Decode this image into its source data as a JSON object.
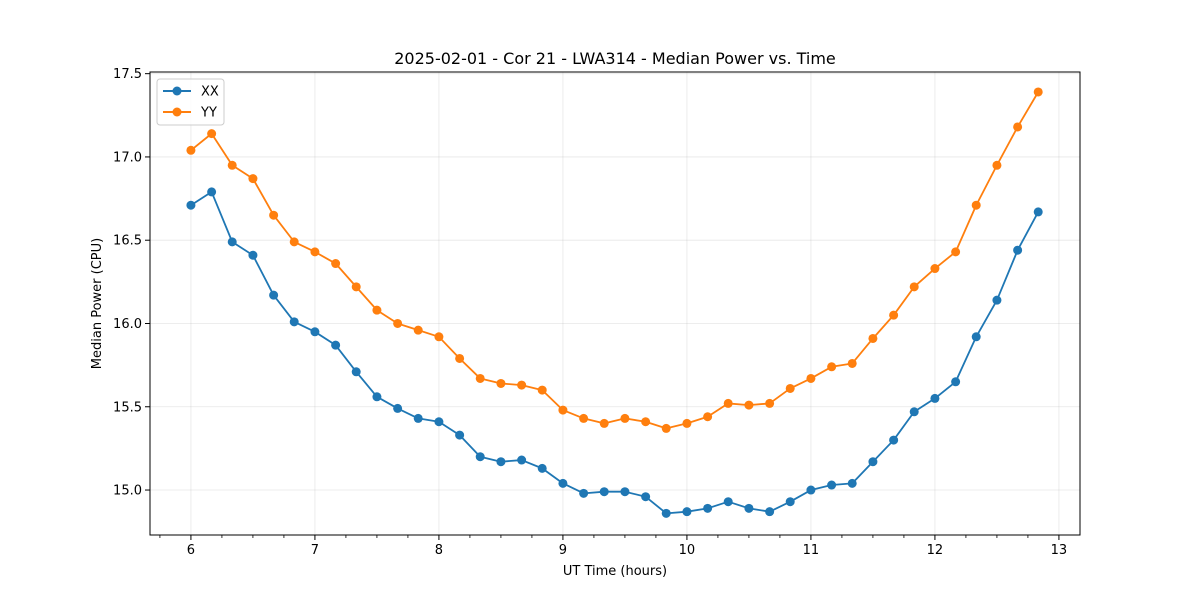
{
  "chart_data": {
    "type": "line",
    "title": "2025-02-01 - Cor 21 - LWA314 - Median Power vs. Time",
    "xlabel": "UT Time (hours)",
    "ylabel": "Median Power (CPU)",
    "xlim": [
      5.67,
      13.17
    ],
    "ylim": [
      14.73,
      17.51
    ],
    "xticks": [
      6,
      7,
      8,
      9,
      10,
      11,
      12,
      13
    ],
    "xtick_labels": [
      "6",
      "7",
      "8",
      "9",
      "10",
      "11",
      "12",
      "13"
    ],
    "xminor_step": 0.25,
    "yticks": [
      15.0,
      15.5,
      16.0,
      16.5,
      17.0,
      17.5
    ],
    "ytick_labels": [
      "15.0",
      "15.5",
      "16.0",
      "16.5",
      "17.0",
      "17.5"
    ],
    "grid": true,
    "legend_position": "top-left",
    "x": [
      6.0,
      6.167,
      6.333,
      6.5,
      6.667,
      6.833,
      7.0,
      7.167,
      7.333,
      7.5,
      7.667,
      7.833,
      8.0,
      8.167,
      8.333,
      8.5,
      8.667,
      8.833,
      9.0,
      9.167,
      9.333,
      9.5,
      9.667,
      9.833,
      10.0,
      10.167,
      10.333,
      10.5,
      10.667,
      10.833,
      11.0,
      11.167,
      11.333,
      11.5,
      11.667,
      11.833,
      12.0,
      12.167,
      12.333,
      12.5,
      12.667,
      12.833
    ],
    "series": [
      {
        "name": "XX",
        "color": "#1f77b4",
        "values": [
          16.71,
          16.79,
          16.49,
          16.41,
          16.17,
          16.01,
          15.95,
          15.87,
          15.71,
          15.56,
          15.49,
          15.43,
          15.41,
          15.33,
          15.2,
          15.17,
          15.18,
          15.13,
          15.04,
          14.98,
          14.99,
          14.99,
          14.96,
          14.86,
          14.87,
          14.89,
          14.93,
          14.89,
          14.87,
          14.93,
          15.0,
          15.03,
          15.04,
          15.17,
          15.3,
          15.47,
          15.55,
          15.65,
          15.92,
          16.14,
          16.44,
          16.67
        ]
      },
      {
        "name": "YY",
        "color": "#ff7f0e",
        "values": [
          17.04,
          17.14,
          16.95,
          16.87,
          16.65,
          16.49,
          16.43,
          16.36,
          16.22,
          16.08,
          16.0,
          15.96,
          15.92,
          15.79,
          15.67,
          15.64,
          15.63,
          15.6,
          15.48,
          15.43,
          15.4,
          15.43,
          15.41,
          15.37,
          15.4,
          15.44,
          15.52,
          15.51,
          15.52,
          15.61,
          15.67,
          15.74,
          15.76,
          15.91,
          16.05,
          16.22,
          16.33,
          16.43,
          16.71,
          16.95,
          17.18,
          17.39
        ]
      }
    ]
  }
}
